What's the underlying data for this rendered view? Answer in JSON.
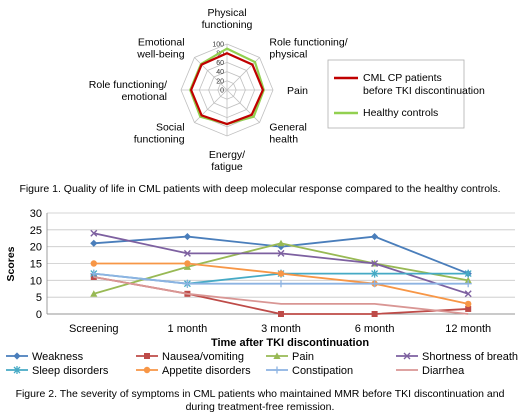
{
  "figure1": {
    "caption": "Figure 1. Quality of life in CML patients with deep molecular response compared to the healthy controls.",
    "chart_data": {
      "type": "radar",
      "categories": [
        "Physical functioning",
        "Role functioning/ physical",
        "Pain",
        "General health",
        "Energy/ fatigue",
        "Social functioning",
        "Role functioning/ emotional",
        "Emotional well-being"
      ],
      "axis_ticks": [
        0,
        20,
        40,
        60,
        80,
        100
      ],
      "rlim": [
        0,
        100
      ],
      "series": [
        {
          "name": "CML CP patients before TKI discontinuation",
          "color": "#c00000",
          "values": [
            80,
            78,
            78,
            76,
            74,
            78,
            78,
            78
          ]
        },
        {
          "name": "Healthy controls",
          "color": "#92d050",
          "values": [
            90,
            86,
            80,
            82,
            74,
            82,
            80,
            80
          ]
        }
      ],
      "legend_position": "right",
      "axis_label_color": "#333333",
      "grid_color": "#c0c0c0"
    }
  },
  "figure2": {
    "caption": "Figure 2. The severity of symptoms in CML patients who maintained MMR before TKI discontinuation and during treatment-free remission.",
    "chart_data": {
      "type": "line",
      "categories": [
        "Screening",
        "1 month",
        "3 month",
        "6 month",
        "12 month"
      ],
      "xlabel": "Time after TKI discontinuation",
      "ylabel": "Scores",
      "ylim": [
        0,
        30
      ],
      "yticks": [
        0,
        5,
        10,
        15,
        20,
        25,
        30
      ],
      "grid": true,
      "legend_position": "bottom",
      "series": [
        {
          "name": "Weakness",
          "color": "#4a7ebb",
          "marker": "diamond",
          "values": [
            21,
            23,
            20,
            23,
            12
          ]
        },
        {
          "name": "Nausea/vomiting",
          "color": "#be4b48",
          "marker": "square",
          "values": [
            11,
            6,
            0,
            0,
            1.5
          ]
        },
        {
          "name": "Pain",
          "color": "#98b954",
          "marker": "triangle",
          "values": [
            6,
            14,
            21,
            15,
            10
          ]
        },
        {
          "name": "Shortness of breath",
          "color": "#7d60a0",
          "marker": "x",
          "values": [
            24,
            18,
            18,
            15,
            6
          ]
        },
        {
          "name": "Sleep disorders",
          "color": "#46aac5",
          "marker": "star",
          "values": [
            12,
            9,
            12,
            12,
            12
          ]
        },
        {
          "name": "Appetite disorders",
          "color": "#f79646",
          "marker": "circle",
          "values": [
            15,
            15,
            12,
            9,
            3
          ]
        },
        {
          "name": "Constipation",
          "color": "#8db3e2",
          "marker": "plus",
          "values": [
            12,
            9,
            9,
            9,
            9
          ]
        },
        {
          "name": "Diarrhea",
          "color": "#d99694",
          "marker": "none",
          "values": [
            11,
            6,
            3,
            3,
            0
          ]
        }
      ]
    }
  }
}
